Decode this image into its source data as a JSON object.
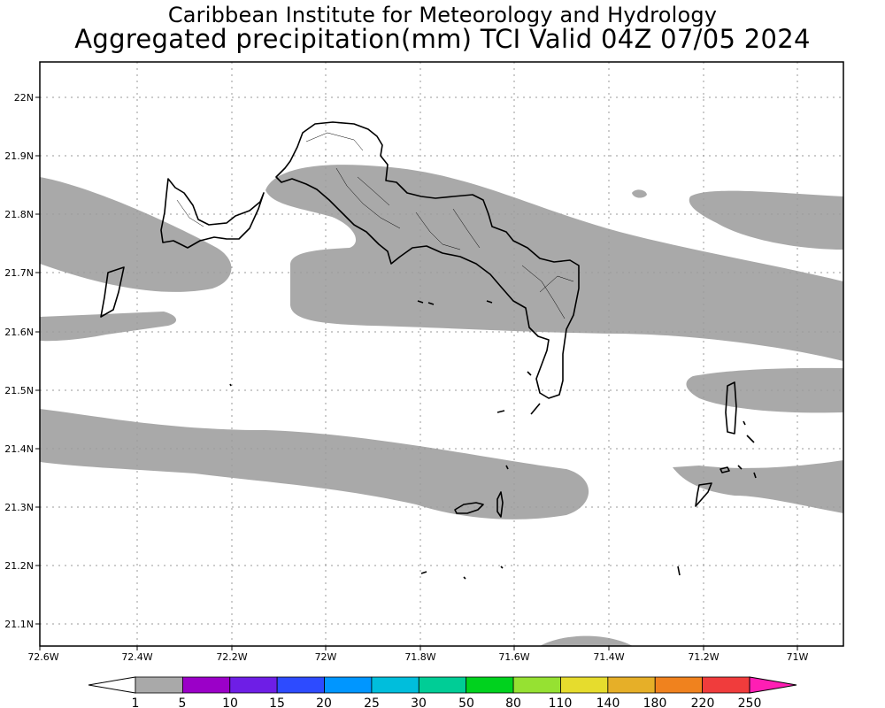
{
  "header": {
    "title_line1": "Caribbean Institute for Meteorology and Hydrology",
    "title_line2": "Aggregated precipitation(mm) TCI Valid 04Z 07/05 2024"
  },
  "map": {
    "x_ticks": [
      "72.6W",
      "72.4W",
      "72.2W",
      "72W",
      "71.8W",
      "71.6W",
      "71.4W",
      "71.2W",
      "71W"
    ],
    "y_ticks": [
      "22N",
      "21.9N",
      "21.8N",
      "21.7N",
      "21.6N",
      "21.5N",
      "21.4N",
      "21.3N",
      "21.2N",
      "21.1N"
    ],
    "colors": {
      "precip_fill": "#a9a9a9",
      "grid": "#9a9a9a",
      "coast": "#000000"
    }
  },
  "legend": {
    "labels": [
      "1",
      "5",
      "10",
      "15",
      "20",
      "25",
      "30",
      "50",
      "80",
      "110",
      "140",
      "180",
      "220",
      "250"
    ],
    "colors": [
      "#a9a9a9",
      "#9b00c8",
      "#6e1ee6",
      "#2d4bff",
      "#0096ff",
      "#00bedc",
      "#00cd96",
      "#00d21e",
      "#96e132",
      "#e6dc2d",
      "#e6af28",
      "#f0821e",
      "#f03c3c",
      "#ff1eb4"
    ]
  }
}
